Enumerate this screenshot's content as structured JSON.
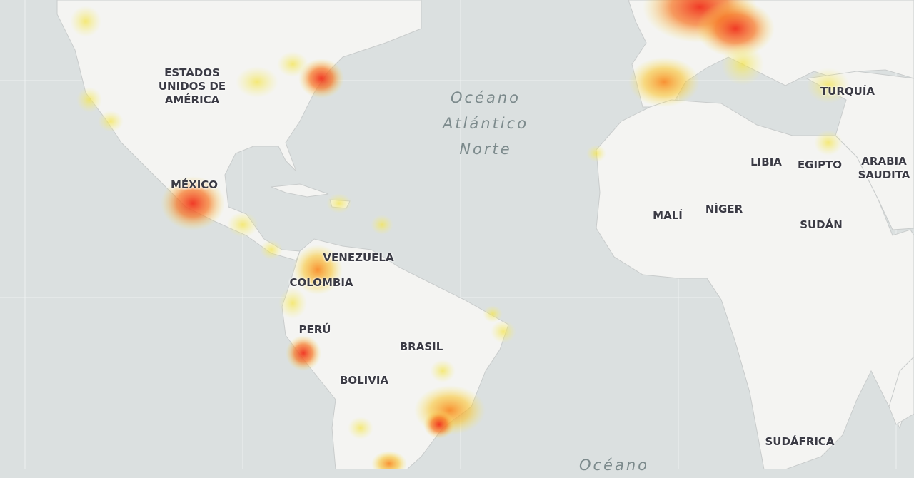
{
  "map": {
    "colors": {
      "ocean": "#dbe0e0",
      "land": "#f4f4f2",
      "border": "#c9cccc",
      "hot": "#f03a1e",
      "medium": "#f9a51f",
      "low": "#f5ea63"
    },
    "country_labels": [
      "ESTADOS UNIDOS DE AMÉRICA",
      "MÉXICO",
      "VENEZUELA",
      "COLOMBIA",
      "PERÚ",
      "BRASIL",
      "BOLIVIA",
      "TURQUÍA",
      "LIBIA",
      "EGIPTO",
      "ARABIA SAUDITA",
      "MALÍ",
      "NÍGER",
      "SUDÁN",
      "SUDÁFRICA"
    ],
    "ocean_labels": {
      "north_atlantic_1": "Océano",
      "north_atlantic_2": "Atlántico",
      "north_atlantic_3": "Norte",
      "south": "Océano"
    },
    "usa_lines": [
      "ESTADOS",
      "UNIDOS DE",
      "AMÉRICA"
    ],
    "saudi_lines": [
      "ARABIA",
      "SAUDITA"
    ]
  }
}
